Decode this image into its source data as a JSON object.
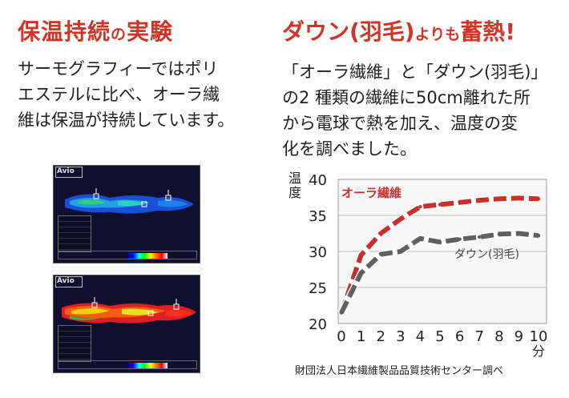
{
  "left_title": {
    "main": "保温持続",
    "small": "の",
    "end": "実験"
  },
  "left_text": [
    "サーモグラフィーではポリ",
    "エステルに比べ、オーラ繊",
    "維は保温が持続しています。"
  ],
  "right_title": {
    "main": "ダウン(羽毛)",
    "small": "よりも",
    "end": "蓄熱!"
  },
  "right_text": [
    "「オーラ繊維」と「ダウン(羽毛)」",
    "の2 種類の繊維に50cm離れた所",
    "から電球で熱を加え、温度の変",
    "化を調べました。"
  ],
  "thermal_images": [
    {
      "brand": "Avio",
      "palette": "cool"
    },
    {
      "brand": "Avio",
      "palette": "hot"
    }
  ],
  "chart_data": {
    "type": "line",
    "x": [
      0,
      1,
      2,
      3,
      4,
      5,
      6,
      7,
      8,
      9,
      10
    ],
    "ylim": [
      20,
      40
    ],
    "yticks": [
      20,
      25,
      30,
      35,
      40
    ],
    "ylabel": "温度",
    "xlabel": "分",
    "grid": true,
    "series": [
      {
        "name": "オーラ繊維",
        "color": "#c9302c",
        "values": [
          21.5,
          29.5,
          32.5,
          34.5,
          36.2,
          36.5,
          36.8,
          37.1,
          37.3,
          37.4,
          37.3
        ]
      },
      {
        "name": "ダウン(羽毛)",
        "color": "#606060",
        "values": [
          21.5,
          27.0,
          29.6,
          30.0,
          31.8,
          31.3,
          31.7,
          32.0,
          32.4,
          32.5,
          32.2
        ]
      }
    ]
  },
  "credit": "財団法人日本繊維製品品質技術センター調べ"
}
